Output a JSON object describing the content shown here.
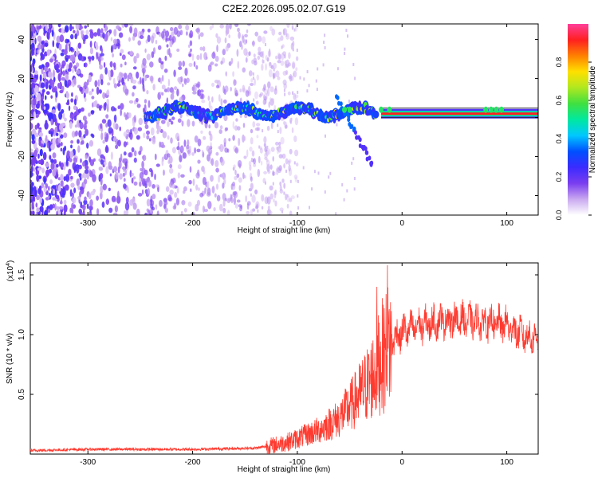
{
  "title": "C2E2.2026.095.02.07.G19",
  "colors": {
    "axis": "#000000",
    "snr_line": "#ff3b30",
    "spectrogram_band_core": "#ff2020",
    "spectrogram_noise": "#7a3df0"
  },
  "chart_data": [
    {
      "type": "heatmap",
      "name": "spectrogram",
      "xlabel": "Height of straight line (km)",
      "ylabel": "Frequency (Hz)",
      "xlim": [
        -355,
        130
      ],
      "ylim": [
        -50,
        48
      ],
      "xticks": [
        -300,
        -200,
        -100,
        0,
        100
      ],
      "yticks": [
        -40,
        -20,
        0,
        20,
        40
      ],
      "xtick_labels": [
        "-300",
        "-200",
        "-100",
        "0",
        "100"
      ],
      "ytick_labels": [
        "-40",
        "-20",
        "0",
        "20",
        "40"
      ],
      "colorbar": {
        "label": "Normalized spectral amplitude",
        "range": [
          0,
          1
        ],
        "ticks": [
          0.0,
          0.2,
          0.4,
          0.6,
          0.8
        ],
        "tick_labels": [
          "0.0",
          "0.2",
          "0.4",
          "0.6",
          "0.8"
        ],
        "colormap": [
          "#ffffff",
          "#c9a8f0",
          "#7a3df0",
          "#3b2bff",
          "#0050ff",
          "#00c8ff",
          "#00e8a0",
          "#40e040",
          "#b0e820",
          "#ffe000",
          "#ff8000",
          "#ff2020",
          "#ff3f9a"
        ]
      },
      "features": {
        "noise_region_x": [
          -355,
          -130
        ],
        "signal_band_x": [
          -245,
          130
        ],
        "signal_band_freq": 2,
        "steady_tone_x": [
          -20,
          130
        ],
        "branch_start": [
          -62,
          10
        ],
        "branch_end": [
          -28,
          -25
        ]
      }
    },
    {
      "type": "line",
      "name": "snr",
      "xlabel": "Height of straight line (km)",
      "ylabel": "SNR (10 * v/v)",
      "multiplier": "(x10^4)",
      "multiplier_base": "(x10",
      "multiplier_exp": "4",
      "multiplier_close": ")",
      "xlim": [
        -355,
        130
      ],
      "ylim": [
        0,
        1.6
      ],
      "xticks": [
        -300,
        -200,
        -100,
        0,
        100
      ],
      "yticks": [
        0.5,
        1.0,
        1.5
      ],
      "xtick_labels": [
        "-300",
        "-200",
        "-100",
        "0",
        "100"
      ],
      "ytick_labels": [
        "0.5",
        "1.0",
        "1.5"
      ],
      "envelope": {
        "x": [
          -355,
          -300,
          -200,
          -140,
          -125,
          -110,
          -100,
          -80,
          -60,
          -45,
          -30,
          -20,
          -10,
          0,
          15,
          30,
          40,
          60,
          80,
          100,
          110,
          120,
          130
        ],
        "y": [
          0.03,
          0.04,
          0.04,
          0.05,
          0.07,
          0.1,
          0.13,
          0.2,
          0.3,
          0.45,
          0.62,
          0.8,
          0.95,
          1.02,
          1.07,
          1.1,
          1.12,
          1.12,
          1.1,
          1.08,
          1.02,
          0.98,
          0.97
        ]
      },
      "spikes": [
        {
          "x": -24,
          "y": 1.4
        },
        {
          "x": -18,
          "y": 1.25
        },
        {
          "x": -14,
          "y": 1.58
        }
      ]
    }
  ]
}
